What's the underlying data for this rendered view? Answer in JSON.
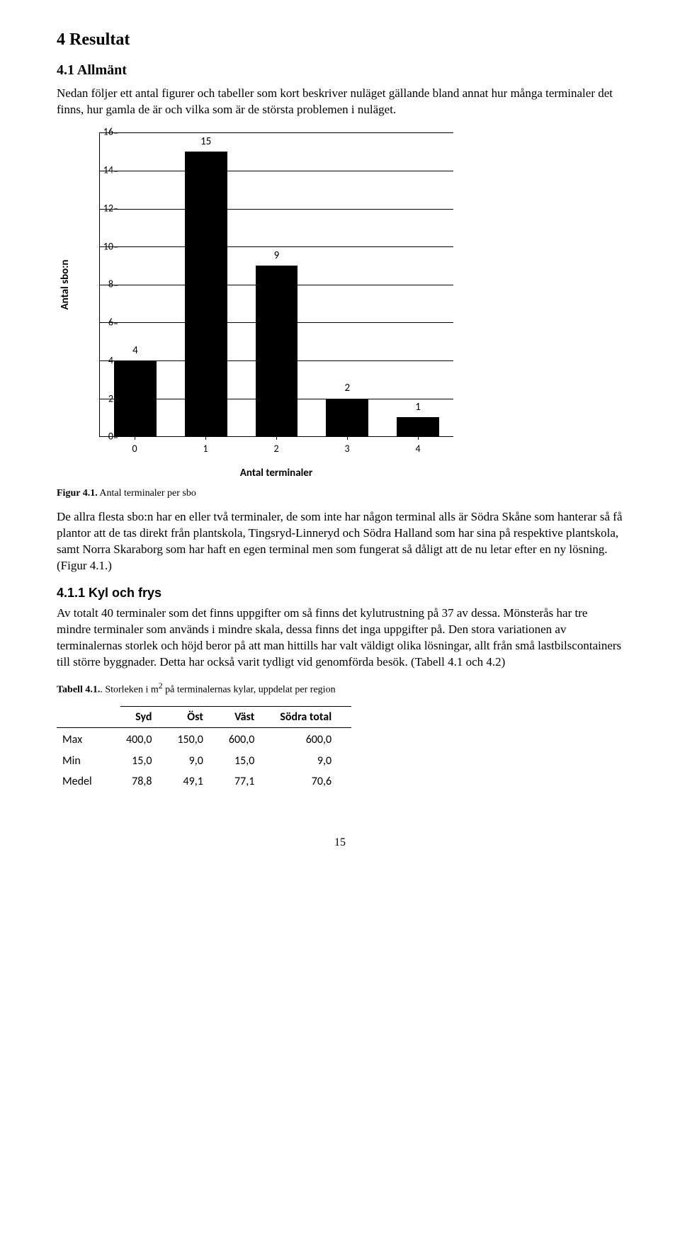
{
  "headings": {
    "h1": "4 Resultat",
    "h2": "4.1 Allmänt",
    "h3": "4.1.1 Kyl och frys"
  },
  "paragraphs": {
    "intro": "Nedan följer ett antal figurer och tabeller som kort beskriver nuläget gällande bland annat hur många terminaler det finns, hur gamla de är och vilka som är de största problemen i nuläget.",
    "body1": "De allra flesta sbo:n har en eller två terminaler, de som inte har någon terminal alls är Södra Skåne som hanterar så få plantor att de tas direkt från plantskola, Tingsryd-Linneryd och Södra Halland som har sina på respektive plantskola, samt Norra Skaraborg som har haft en egen terminal men som fungerat så dåligt att de nu letar efter en ny lösning. (Figur 4.1.)",
    "body2": "Av totalt 40 terminaler som det finns uppgifter om så finns det kylutrustning på 37 av dessa. Mönsterås har tre mindre terminaler som används i mindre skala, dessa finns det inga uppgifter på. Den stora variationen av terminalernas storlek och höjd beror på att man hittills har valt väldigt olika lösningar, allt från små lastbilscontainers till större byggnader. Detta har också varit tydligt vid genomförda besök. (Tabell 4.1 och 4.2)"
  },
  "figure_caption": {
    "label": "Figur 4.1.",
    "text": " Antal terminaler per sbo"
  },
  "table_caption": {
    "label": "Tabell 4.1.",
    "text": ". Storleken i m",
    "sup": "2",
    "text2": " på terminalernas kylar, uppdelat per region"
  },
  "chart": {
    "type": "bar",
    "y_label": "Antal sbo:n",
    "x_label": "Antal terminaler",
    "categories": [
      "0",
      "1",
      "2",
      "3",
      "4"
    ],
    "values": [
      4,
      15,
      9,
      2,
      1
    ],
    "bar_color": "#000000",
    "grid_color": "#000000",
    "background_color": "#ffffff",
    "ylim": [
      0,
      16
    ],
    "ytick_step": 2,
    "yticks": [
      "0",
      "2",
      "4",
      "6",
      "8",
      "10",
      "12",
      "14",
      "16"
    ],
    "label_font": "Calibri",
    "label_fontsize": 15,
    "bar_width_pct": 60
  },
  "table": {
    "columns": [
      "",
      "Syd",
      "Öst",
      "Väst",
      "Södra total"
    ],
    "rows": [
      [
        "Max",
        "400,0",
        "150,0",
        "600,0",
        "600,0"
      ],
      [
        "Min",
        "15,0",
        "9,0",
        "15,0",
        "9,0"
      ],
      [
        "Medel",
        "78,8",
        "49,1",
        "77,1",
        "70,6"
      ]
    ]
  },
  "page_number": "15"
}
